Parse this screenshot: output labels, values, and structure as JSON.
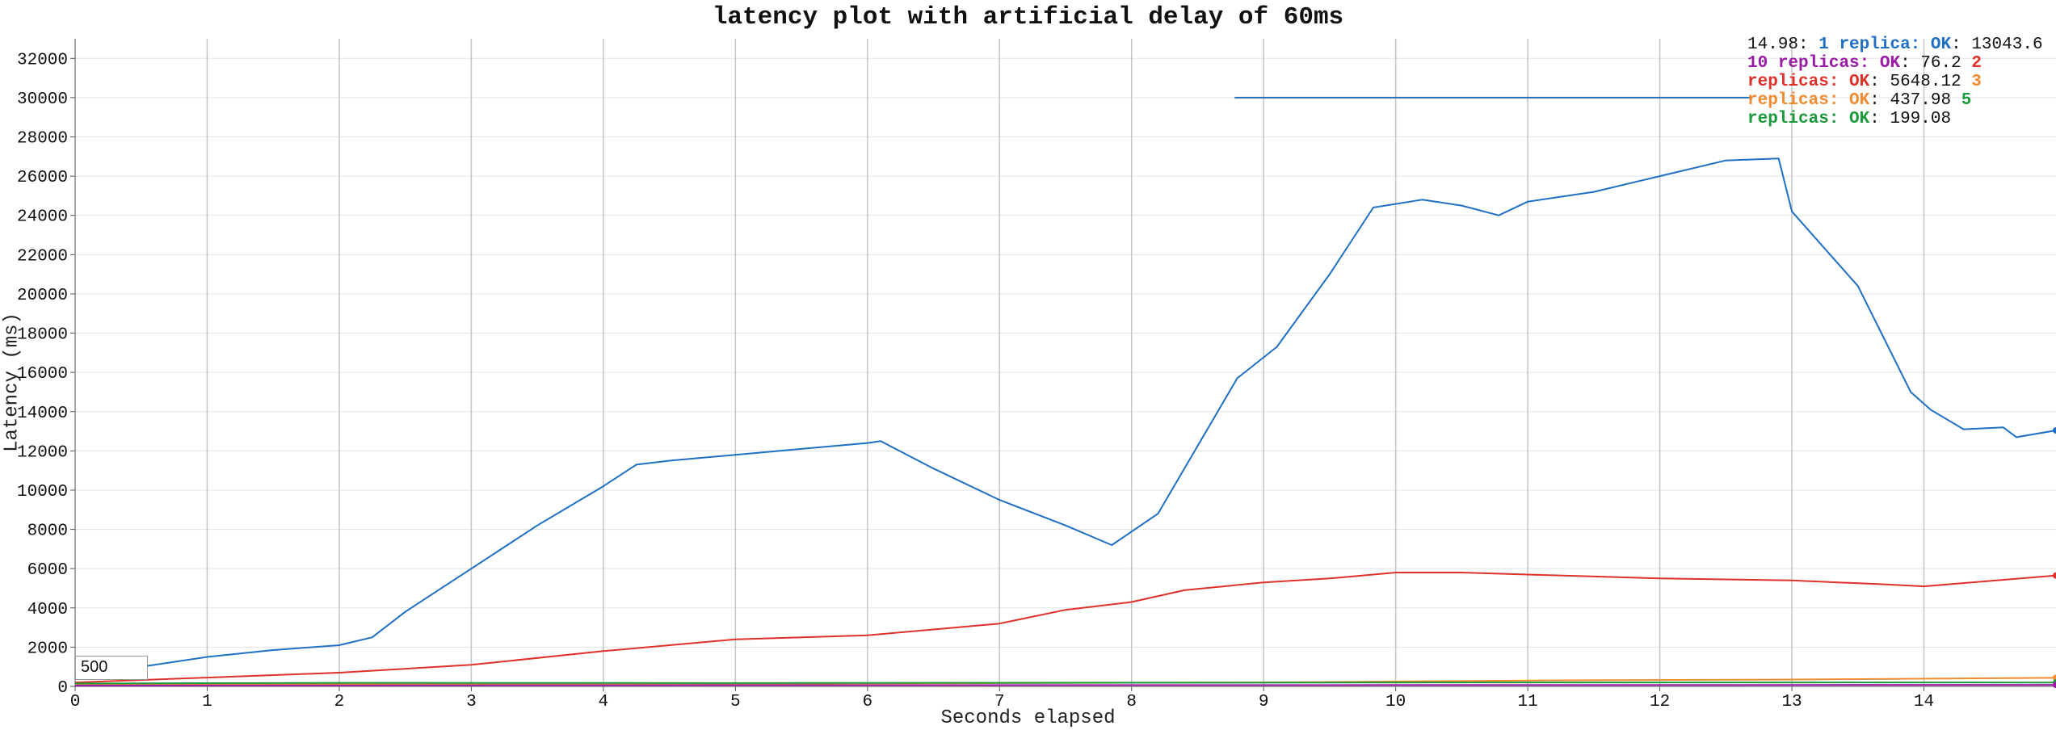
{
  "chart_data": {
    "type": "line",
    "title": "latency plot with artificial delay of 60ms",
    "xlabel": "Seconds elapsed",
    "ylabel": "Latency (ms)",
    "xlim": [
      0,
      15
    ],
    "ylim": [
      0,
      33000
    ],
    "x_ticks": [
      0,
      1,
      2,
      3,
      4,
      5,
      6,
      7,
      8,
      9,
      10,
      11,
      12,
      13,
      14
    ],
    "y_ticks": [
      0,
      2000,
      4000,
      6000,
      8000,
      10000,
      12000,
      14000,
      16000,
      18000,
      20000,
      22000,
      24000,
      26000,
      28000,
      30000,
      32000
    ],
    "grid": {
      "x": true,
      "y": true
    },
    "legend_position": "top-right",
    "legend": {
      "time": "14.98",
      "entries": [
        {
          "count": "1",
          "label": "replica:",
          "status": "OK",
          "value": "13043.6",
          "color": "#1f6fc5"
        },
        {
          "count": "10",
          "label": "replicas:",
          "status": "OK",
          "value": "76.2",
          "color": "#9c1aa8"
        },
        {
          "count": "2",
          "label": "replicas:",
          "status": "OK",
          "value": "5648.12",
          "color": "#e0302a"
        },
        {
          "count": "3",
          "label": "replicas:",
          "status": "OK",
          "value": "437.98",
          "color": "#f28b30"
        },
        {
          "count": "5",
          "label": "replicas:",
          "status": "OK",
          "value": "199.08",
          "color": "#1a9a3a"
        }
      ]
    },
    "range_input": "500",
    "marker_line": {
      "x_start": 8.78,
      "x_end": 12.7,
      "y": 30000
    },
    "series": [
      {
        "name": "1 replica",
        "color": "#1f6fc5",
        "points": [
          [
            0,
            700
          ],
          [
            0.5,
            1000
          ],
          [
            1,
            1500
          ],
          [
            1.5,
            1850
          ],
          [
            2,
            2100
          ],
          [
            2.25,
            2500
          ],
          [
            2.5,
            3800
          ],
          [
            3,
            6000
          ],
          [
            3.5,
            8200
          ],
          [
            4,
            10200
          ],
          [
            4.25,
            11300
          ],
          [
            4.5,
            11500
          ],
          [
            5,
            11800
          ],
          [
            5.5,
            12100
          ],
          [
            6,
            12400
          ],
          [
            6.1,
            12500
          ],
          [
            6.5,
            11100
          ],
          [
            7,
            9500
          ],
          [
            7.5,
            8200
          ],
          [
            7.85,
            7200
          ],
          [
            8.2,
            8800
          ],
          [
            8.8,
            15700
          ],
          [
            9.1,
            17300
          ],
          [
            9.5,
            21000
          ],
          [
            9.83,
            24400
          ],
          [
            10.2,
            24800
          ],
          [
            10.5,
            24500
          ],
          [
            10.78,
            24000
          ],
          [
            11,
            24700
          ],
          [
            11.5,
            25200
          ],
          [
            12,
            26000
          ],
          [
            12.5,
            26800
          ],
          [
            12.9,
            26900
          ],
          [
            13,
            24200
          ],
          [
            13.5,
            20400
          ],
          [
            13.9,
            15000
          ],
          [
            14.05,
            14100
          ],
          [
            14.3,
            13100
          ],
          [
            14.6,
            13200
          ],
          [
            14.7,
            12700
          ],
          [
            15,
            13043.6
          ]
        ]
      },
      {
        "name": "2 replicas",
        "color": "#e0302a",
        "points": [
          [
            0,
            200
          ],
          [
            1,
            450
          ],
          [
            2,
            700
          ],
          [
            3,
            1100
          ],
          [
            4,
            1800
          ],
          [
            5,
            2400
          ],
          [
            6,
            2600
          ],
          [
            7,
            3200
          ],
          [
            7.5,
            3900
          ],
          [
            8,
            4300
          ],
          [
            8.4,
            4900
          ],
          [
            9,
            5300
          ],
          [
            9.5,
            5500
          ],
          [
            10,
            5800
          ],
          [
            10.5,
            5800
          ],
          [
            11,
            5700
          ],
          [
            12,
            5500
          ],
          [
            13,
            5400
          ],
          [
            13.7,
            5200
          ],
          [
            14,
            5100
          ],
          [
            15,
            5648.12
          ]
        ]
      },
      {
        "name": "3 replicas",
        "color": "#f28b30",
        "points": [
          [
            0,
            100
          ],
          [
            3,
            120
          ],
          [
            6,
            150
          ],
          [
            9,
            200
          ],
          [
            11,
            300
          ],
          [
            13,
            350
          ],
          [
            15,
            437.98
          ]
        ]
      },
      {
        "name": "5 replicas",
        "color": "#1a9a3a",
        "points": [
          [
            0,
            150
          ],
          [
            2,
            180
          ],
          [
            5,
            170
          ],
          [
            8,
            190
          ],
          [
            11,
            200
          ],
          [
            15,
            199.08
          ]
        ]
      },
      {
        "name": "10 replicas",
        "color": "#9c1aa8",
        "points": [
          [
            0,
            40
          ],
          [
            5,
            60
          ],
          [
            10,
            70
          ],
          [
            15,
            76.2
          ]
        ]
      }
    ]
  }
}
